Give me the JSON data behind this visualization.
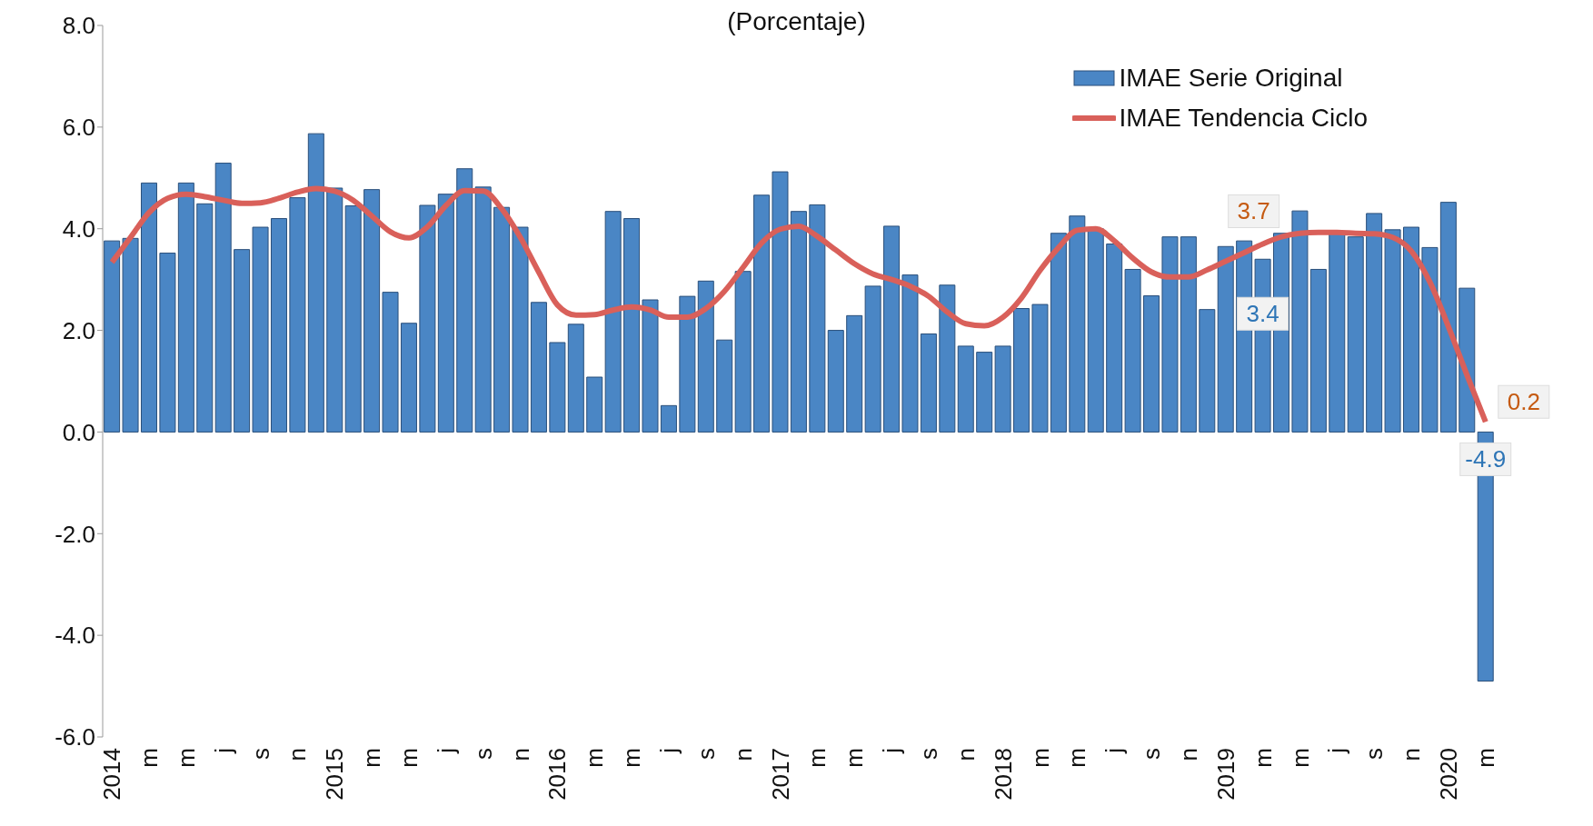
{
  "chart_data": {
    "type": "bar",
    "title": "(Porcentaje)",
    "categories": [
      "2014",
      null,
      "m",
      null,
      "m",
      null,
      "j",
      null,
      "s",
      null,
      "n",
      null,
      "2015",
      null,
      "m",
      null,
      "m",
      null,
      "j",
      null,
      "s",
      null,
      "n",
      null,
      "2016",
      null,
      "m",
      null,
      "m",
      null,
      "j",
      null,
      "s",
      null,
      "n",
      null,
      "2017",
      null,
      "m",
      null,
      "m",
      null,
      "j",
      null,
      "s",
      null,
      "n",
      null,
      "2018",
      null,
      "m",
      null,
      "m",
      null,
      "j",
      null,
      "s",
      null,
      "n",
      null,
      "2019",
      null,
      "m",
      null,
      "m",
      null,
      "j",
      null,
      "s",
      null,
      "n",
      null,
      "2020",
      null,
      "m"
    ],
    "series": [
      {
        "name": "IMAE Serie Original",
        "color": "#4a86c5",
        "values": [
          3.76,
          3.81,
          4.9,
          3.52,
          4.9,
          4.49,
          5.29,
          3.59,
          4.03,
          4.2,
          4.61,
          5.87,
          4.8,
          4.45,
          4.77,
          2.75,
          2.14,
          4.46,
          4.68,
          5.18,
          4.82,
          4.42,
          4.03,
          2.55,
          1.76,
          2.12,
          1.08,
          4.34,
          4.2,
          2.6,
          0.52,
          2.67,
          2.97,
          1.81,
          3.16,
          4.66,
          5.12,
          4.34,
          4.47,
          2.0,
          2.29,
          2.87,
          4.05,
          3.09,
          1.93,
          2.89,
          1.69,
          1.57,
          1.69,
          2.43,
          2.51,
          3.91,
          4.25,
          4.0,
          3.7,
          3.2,
          2.68,
          3.84,
          3.84,
          2.41,
          3.65,
          3.76,
          3.4,
          3.91,
          4.35,
          3.2,
          3.9,
          3.84,
          4.3,
          3.98,
          4.03,
          3.63,
          4.52,
          2.83,
          -4.9
        ],
        "value_labels": [
          null,
          null,
          null,
          null,
          null,
          null,
          null,
          null,
          null,
          null,
          null,
          null,
          null,
          null,
          null,
          null,
          null,
          null,
          null,
          null,
          null,
          null,
          null,
          null,
          null,
          null,
          null,
          null,
          null,
          null,
          null,
          null,
          null,
          null,
          null,
          null,
          null,
          null,
          null,
          null,
          null,
          null,
          null,
          null,
          null,
          null,
          null,
          null,
          null,
          null,
          null,
          null,
          null,
          null,
          null,
          null,
          null,
          null,
          null,
          null,
          null,
          null,
          "3.4",
          null,
          null,
          null,
          null,
          null,
          null,
          null,
          null,
          null,
          null,
          null,
          "-4.9"
        ]
      },
      {
        "name": "IMAE Tendencia Ciclo",
        "type": "line",
        "color": "#d9605a",
        "values": [
          3.34,
          3.83,
          4.32,
          4.6,
          4.68,
          4.63,
          4.56,
          4.5,
          4.51,
          4.6,
          4.72,
          4.79,
          4.74,
          4.56,
          4.25,
          3.94,
          3.82,
          4.04,
          4.46,
          4.75,
          4.74,
          4.39,
          3.83,
          3.14,
          2.5,
          2.3,
          2.31,
          2.4,
          2.46,
          2.4,
          2.26,
          2.26,
          2.43,
          2.77,
          3.24,
          3.72,
          3.99,
          4.05,
          3.85,
          3.58,
          3.31,
          3.11,
          3.0,
          2.87,
          2.67,
          2.36,
          2.13,
          2.09,
          2.26,
          2.64,
          3.18,
          3.63,
          3.97,
          4.0,
          3.76,
          3.42,
          3.15,
          3.05,
          3.05,
          3.19,
          3.36,
          3.53,
          3.7,
          3.84,
          3.91,
          3.93,
          3.93,
          3.91,
          3.9,
          3.83,
          3.56,
          2.95,
          2.07,
          1.12,
          0.2
        ],
        "value_labels": [
          null,
          null,
          null,
          null,
          null,
          null,
          null,
          null,
          null,
          null,
          null,
          null,
          null,
          null,
          null,
          null,
          null,
          null,
          null,
          null,
          null,
          null,
          null,
          null,
          null,
          null,
          null,
          null,
          null,
          null,
          null,
          null,
          null,
          null,
          null,
          null,
          null,
          null,
          null,
          null,
          null,
          null,
          null,
          null,
          null,
          null,
          null,
          null,
          null,
          null,
          null,
          null,
          null,
          null,
          null,
          null,
          null,
          null,
          null,
          null,
          null,
          null,
          "3.7",
          null,
          null,
          null,
          null,
          null,
          null,
          null,
          null,
          null,
          null,
          null,
          "0.2"
        ]
      }
    ],
    "ylim": [
      -6,
      8
    ],
    "yticks": [
      {
        "value": -6,
        "label": "-6.0"
      },
      {
        "value": -4,
        "label": "-4.0"
      },
      {
        "value": -2,
        "label": "-2.0"
      },
      {
        "value": 0,
        "label": "0.0"
      },
      {
        "value": 2,
        "label": "2.0"
      },
      {
        "value": 4,
        "label": "4.0"
      },
      {
        "value": 6,
        "label": "6.0"
      },
      {
        "value": 8,
        "label": "8.0"
      }
    ],
    "legend": "top right"
  }
}
